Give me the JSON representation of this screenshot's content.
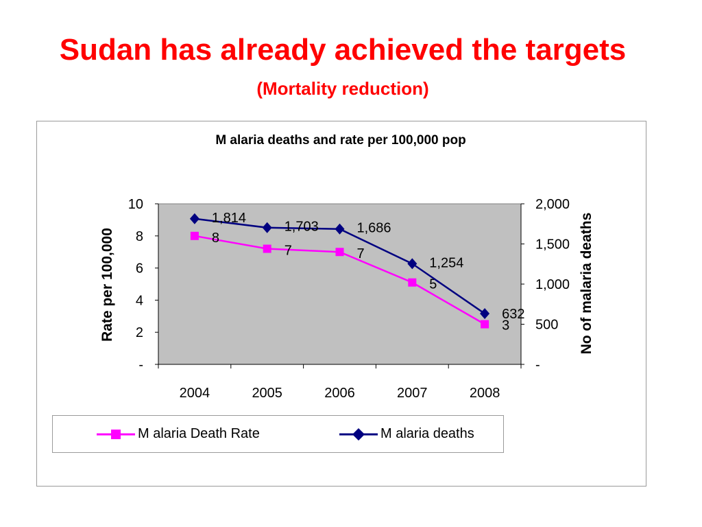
{
  "slide": {
    "title": "Sudan has already achieved the targets",
    "subtitle": "(Mortality reduction)"
  },
  "colors": {
    "title": "#ff0000",
    "plot_background": "#c0c0c0",
    "rate_series": "#ff00ff",
    "deaths_series": "#000080"
  },
  "chart_data": {
    "type": "line",
    "title": "M alaria deaths and rate per 100,000 pop",
    "categories": [
      "2004",
      "2005",
      "2006",
      "2007",
      "2008"
    ],
    "y_left": {
      "label": "Rate per 100,000",
      "ylim": [
        0,
        10
      ],
      "ticks": [
        0,
        2,
        4,
        6,
        8,
        10
      ],
      "tick_labels": [
        "-",
        "2",
        "4",
        "6",
        "8",
        "10"
      ]
    },
    "y_right": {
      "label": "No of malaria deaths",
      "ylim": [
        0,
        2000
      ],
      "ticks": [
        0,
        500,
        1000,
        1500,
        2000
      ],
      "tick_labels": [
        "-",
        "500",
        "1,000",
        "1,500",
        "2,000"
      ]
    },
    "series": [
      {
        "name": "M alaria Death Rate",
        "axis": "left",
        "marker": "square",
        "color": "#ff00ff",
        "values": [
          8,
          7.2,
          7,
          5.1,
          2.5
        ],
        "data_labels": [
          "8",
          "7",
          "7",
          "5",
          "3"
        ]
      },
      {
        "name": "M alaria deaths",
        "axis": "right",
        "marker": "diamond",
        "color": "#000080",
        "values": [
          1814,
          1703,
          1686,
          1254,
          632
        ],
        "data_labels": [
          "1,814",
          "1,703",
          "1,686",
          "1,254",
          "632"
        ]
      }
    ],
    "grid": false,
    "legend_position": "bottom"
  }
}
